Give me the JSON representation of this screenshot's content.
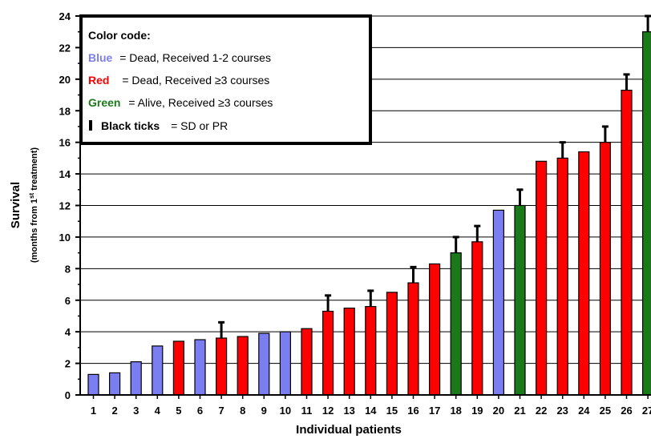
{
  "chart_data": {
    "type": "bar",
    "xlabel": "Individual patients",
    "ylabel": "Survival",
    "ylabel_sub_pre": "(months from 1",
    "ylabel_sub_sup": "st",
    "ylabel_sub_post": " treatment)",
    "ylim": [
      0,
      24
    ],
    "y_ticks": [
      "0",
      "2",
      "4",
      "6",
      "8",
      "10",
      "12",
      "14",
      "16",
      "18",
      "20",
      "22",
      "24"
    ],
    "grid": "horizontal",
    "colors": {
      "blue": "#7b7ef0",
      "red": "#ff0000",
      "green": "#1a7a1a",
      "tick": "#000000"
    },
    "categories": [
      "1",
      "2",
      "3",
      "4",
      "5",
      "6",
      "7",
      "8",
      "9",
      "10",
      "11",
      "12",
      "13",
      "14",
      "15",
      "16",
      "17",
      "18",
      "19",
      "20",
      "21",
      "22",
      "23",
      "24",
      "25",
      "26",
      "27"
    ],
    "values": [
      1.3,
      1.4,
      2.1,
      3.1,
      3.4,
      3.5,
      3.6,
      3.7,
      3.9,
      4.0,
      4.2,
      5.3,
      5.5,
      5.6,
      6.5,
      7.1,
      8.3,
      9.0,
      9.7,
      11.7,
      12.0,
      14.8,
      15.0,
      15.4,
      16.0,
      19.3,
      23.0
    ],
    "groups": [
      "blue",
      "blue",
      "blue",
      "blue",
      "red",
      "blue",
      "red",
      "red",
      "blue",
      "blue",
      "red",
      "red",
      "red",
      "red",
      "red",
      "red",
      "red",
      "green",
      "red",
      "blue",
      "green",
      "red",
      "red",
      "red",
      "red",
      "red",
      "green"
    ],
    "tick_tops": [
      null,
      null,
      null,
      null,
      null,
      null,
      4.6,
      null,
      null,
      null,
      null,
      6.3,
      null,
      6.6,
      null,
      8.1,
      null,
      10.0,
      10.7,
      null,
      13.0,
      null,
      16.0,
      null,
      17.0,
      20.3,
      24.0
    ],
    "legend": {
      "placement": "top-left",
      "title": "Color code:",
      "items": [
        {
          "key": "Blue",
          "desc": "= Dead, Received 1-2 courses",
          "color": "#7b7ef0"
        },
        {
          "key": "Red",
          "desc": "= Dead, Received ≥3 courses",
          "color": "#ff0000"
        },
        {
          "key": "Green",
          "desc": "= Alive, Received ≥3 courses",
          "color": "#1a7a1a"
        },
        {
          "key": "Black ticks",
          "desc": "= SD or PR",
          "color": "#000000"
        }
      ]
    }
  }
}
